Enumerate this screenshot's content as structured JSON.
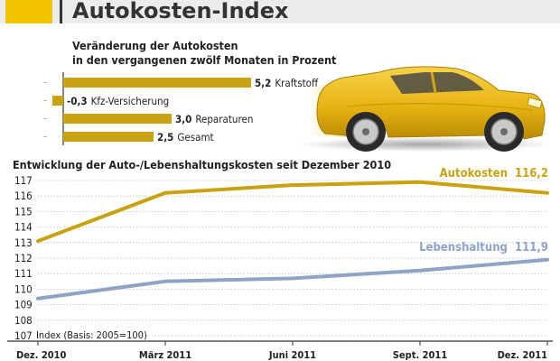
{
  "header": {
    "title": "Autokosten-Index"
  },
  "chart_data": [
    {
      "type": "bar",
      "orientation": "horizontal",
      "title_lines": [
        "Veränderung der Autokosten",
        "in den vergangenen zwölf Monaten in Prozent"
      ],
      "categories": [
        "Kraftstoff",
        "Kfz-Versicherung",
        "Reparaturen",
        "Gesamt"
      ],
      "values": [
        5.2,
        -0.3,
        3.0,
        2.5
      ],
      "value_labels": [
        "5,2",
        "-0,3",
        "3,0",
        "2,5"
      ],
      "color": "#c9a212"
    },
    {
      "type": "line",
      "title": "Entwicklung der Auto-/Lebenshaltungskosten seit Dezember 2010",
      "x_labels": [
        "Dez. 2010",
        "März 2011",
        "Juni 2011",
        "Sept. 2011",
        "Dez. 2011"
      ],
      "ylim": [
        107,
        117
      ],
      "yticks": [
        "107",
        "108",
        "109",
        "110",
        "111",
        "112",
        "113",
        "114",
        "115",
        "116",
        "117"
      ],
      "note": "Index (Basis: 2005=100)",
      "grid": true,
      "series": [
        {
          "name": "Autokosten",
          "end_label": "116,2",
          "color": "#c9a212",
          "values": [
            113.1,
            116.2,
            116.7,
            116.9,
            116.2
          ]
        },
        {
          "name": "Lebenshaltung",
          "end_label": "111,9",
          "color": "#8fa3c7",
          "values": [
            109.4,
            110.5,
            110.7,
            111.2,
            111.9
          ]
        }
      ]
    }
  ]
}
